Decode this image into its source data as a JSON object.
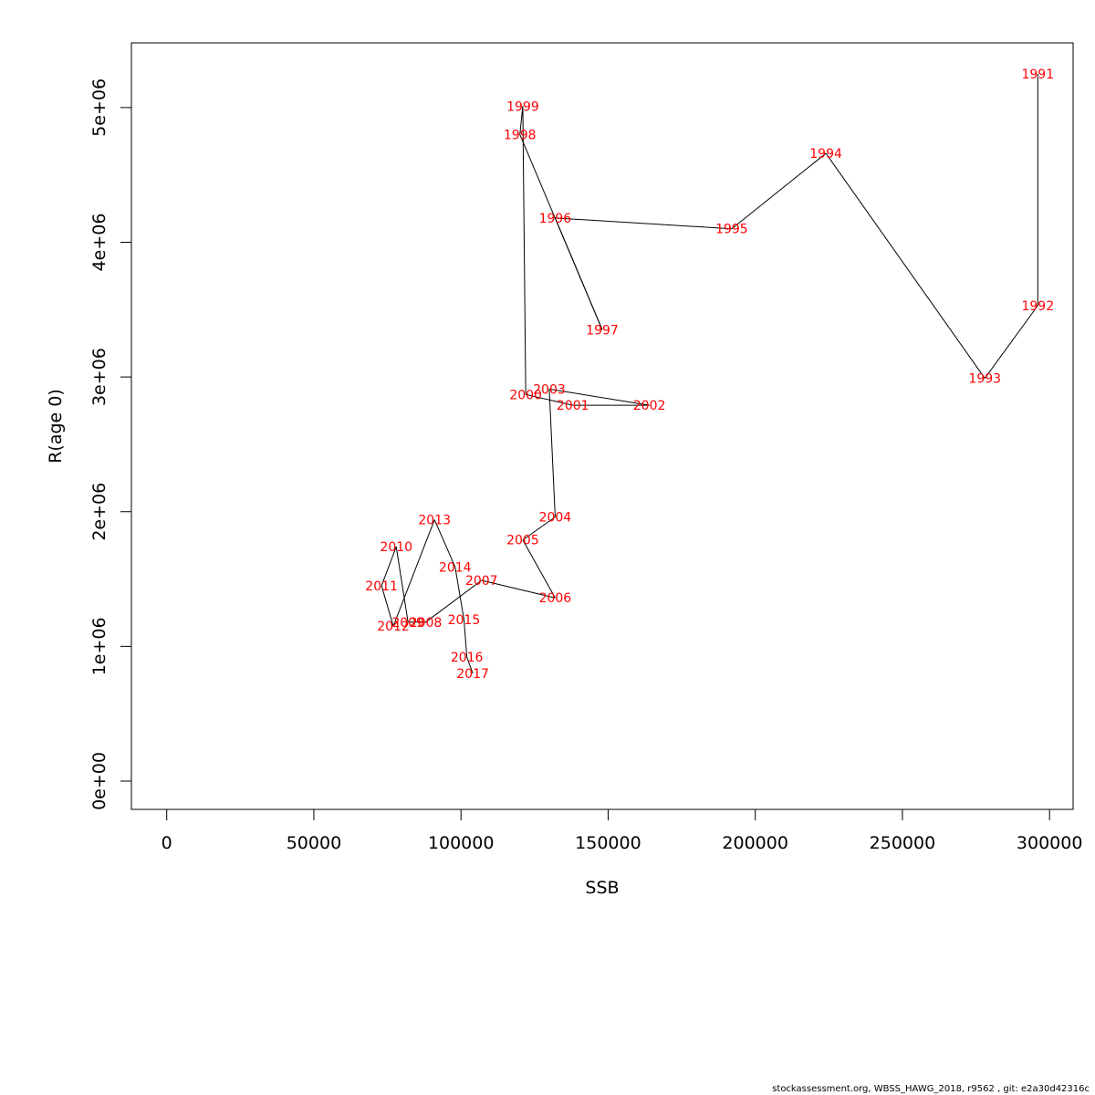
{
  "chart_data": {
    "type": "line",
    "title": "",
    "xlabel": "SSB",
    "ylabel": "R(age 0)",
    "xlim": [
      -12000,
      308000
    ],
    "ylim": [
      -210000,
      5480000
    ],
    "xticks": [
      {
        "value": 0,
        "label": "0"
      },
      {
        "value": 50000,
        "label": "50000"
      },
      {
        "value": 100000,
        "label": "100000"
      },
      {
        "value": 150000,
        "label": "150000"
      },
      {
        "value": 200000,
        "label": "200000"
      },
      {
        "value": 250000,
        "label": "250000"
      },
      {
        "value": 300000,
        "label": "300000"
      }
    ],
    "yticks": [
      {
        "value": 0,
        "label": "0e+00"
      },
      {
        "value": 1000000,
        "label": "1e+06"
      },
      {
        "value": 2000000,
        "label": "2e+06"
      },
      {
        "value": 3000000,
        "label": "3e+06"
      },
      {
        "value": 4000000,
        "label": "4e+06"
      },
      {
        "value": 5000000,
        "label": "5e+06"
      }
    ],
    "point_labels_color": "#ff0000",
    "line_color": "#000000",
    "points": [
      {
        "year": "1991",
        "x": 296000,
        "y": 5250000
      },
      {
        "year": "1992",
        "x": 296000,
        "y": 3530000
      },
      {
        "year": "1993",
        "x": 278000,
        "y": 2990000
      },
      {
        "year": "1994",
        "x": 224000,
        "y": 4660000
      },
      {
        "year": "1995",
        "x": 192000,
        "y": 4100000
      },
      {
        "year": "1996",
        "x": 132000,
        "y": 4180000
      },
      {
        "year": "1997",
        "x": 148000,
        "y": 3350000
      },
      {
        "year": "1998",
        "x": 120000,
        "y": 4800000
      },
      {
        "year": "1999",
        "x": 121000,
        "y": 5010000
      },
      {
        "year": "2000",
        "x": 122000,
        "y": 2870000
      },
      {
        "year": "2001",
        "x": 138000,
        "y": 2790000
      },
      {
        "year": "2002",
        "x": 164000,
        "y": 2790000
      },
      {
        "year": "2003",
        "x": 130000,
        "y": 2910000
      },
      {
        "year": "2004",
        "x": 132000,
        "y": 1960000
      },
      {
        "year": "2005",
        "x": 121000,
        "y": 1790000
      },
      {
        "year": "2006",
        "x": 132000,
        "y": 1360000
      },
      {
        "year": "2007",
        "x": 107000,
        "y": 1490000
      },
      {
        "year": "2008",
        "x": 88000,
        "y": 1180000
      },
      {
        "year": "2009",
        "x": 82000,
        "y": 1180000
      },
      {
        "year": "2010",
        "x": 78000,
        "y": 1740000
      },
      {
        "year": "2011",
        "x": 73000,
        "y": 1450000
      },
      {
        "year": "2012",
        "x": 77000,
        "y": 1150000
      },
      {
        "year": "2013",
        "x": 91000,
        "y": 1940000
      },
      {
        "year": "2014",
        "x": 98000,
        "y": 1590000
      },
      {
        "year": "2015",
        "x": 101000,
        "y": 1200000
      },
      {
        "year": "2016",
        "x": 102000,
        "y": 920000
      },
      {
        "year": "2017",
        "x": 104000,
        "y": 800000
      }
    ]
  },
  "footer": "stockassessment.org, WBSS_HAWG_2018, r9562 , git: e2a30d42316c"
}
